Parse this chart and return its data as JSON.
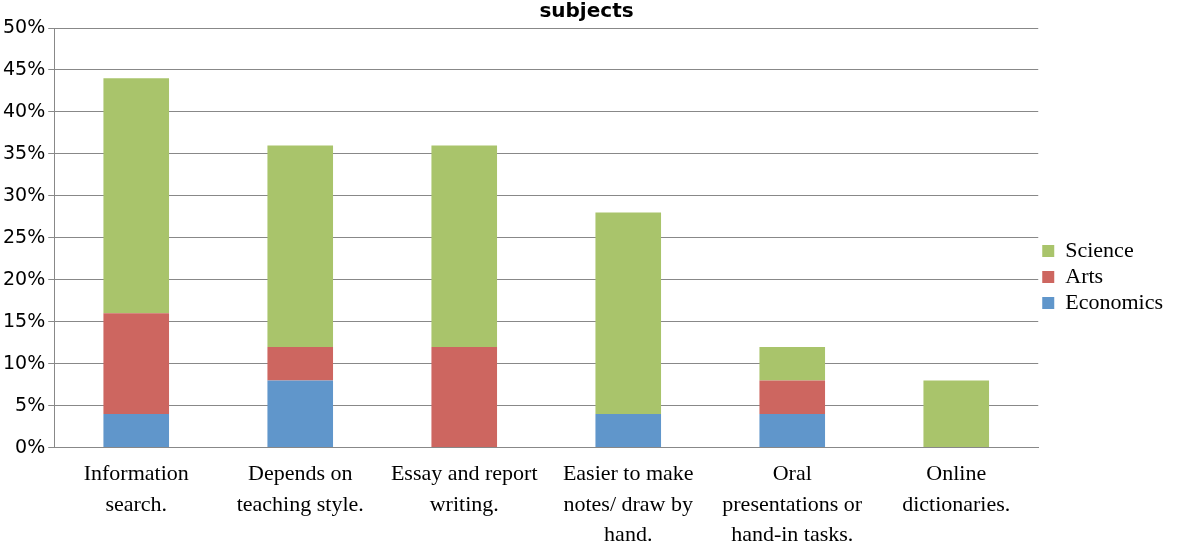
{
  "chart_data": {
    "type": "bar",
    "title": "subjects",
    "stacked": true,
    "grid": "y",
    "legend": "right",
    "categories": [
      "Information search.",
      "Depends on teaching style.",
      "Essay and report writing.",
      "Easier to make notes/ draw by hand.",
      "Oral presentations or hand-in tasks.",
      "Online dictionaries."
    ],
    "series": [
      {
        "name": "Economics",
        "color": "#6096cb",
        "values": [
          4,
          8,
          0,
          4,
          4,
          0
        ]
      },
      {
        "name": "Arts",
        "color": "#cd6660",
        "values": [
          12,
          4,
          12,
          0,
          4,
          0
        ]
      },
      {
        "name": "Science",
        "color": "#a9c46b",
        "values": [
          28,
          24,
          24,
          24,
          4,
          8
        ]
      }
    ],
    "ylim": [
      0,
      50
    ],
    "yticks": [
      {
        "value": 0,
        "label": "0%"
      },
      {
        "value": 5,
        "label": "5%"
      },
      {
        "value": 10,
        "label": "10%"
      },
      {
        "value": 15,
        "label": "15%"
      },
      {
        "value": 20,
        "label": "20%"
      },
      {
        "value": 25,
        "label": "25%"
      },
      {
        "value": 30,
        "label": "30%"
      },
      {
        "value": 35,
        "label": "35%"
      },
      {
        "value": 40,
        "label": "40%"
      },
      {
        "value": 45,
        "label": "45%"
      },
      {
        "value": 50,
        "label": "50%"
      }
    ]
  }
}
